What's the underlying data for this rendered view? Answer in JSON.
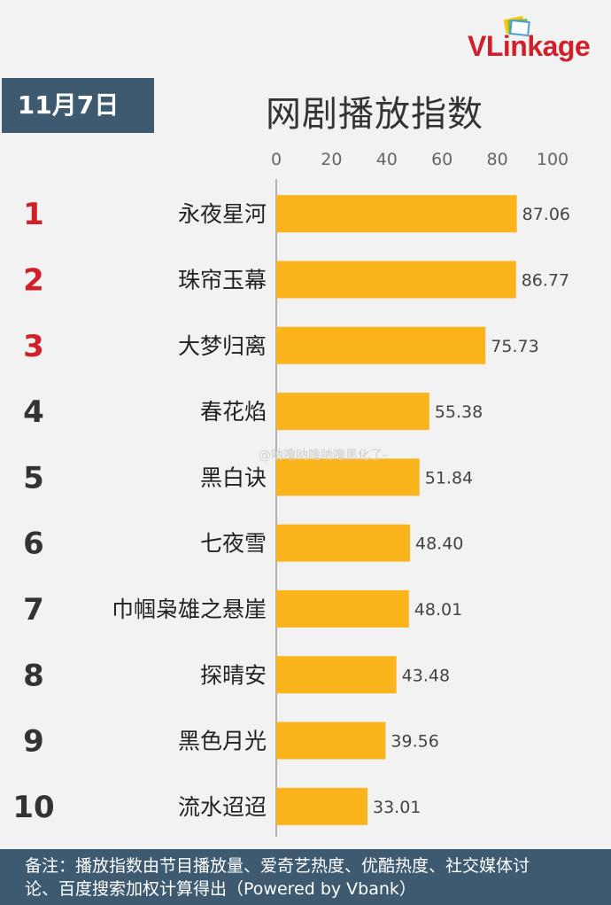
{
  "brand": {
    "logo_text": "VLinkage",
    "logo_color": "#d0202a"
  },
  "header": {
    "date": "11月7日",
    "title": "网剧播放指数"
  },
  "chart_data": {
    "type": "bar",
    "orientation": "horizontal",
    "title": "网剧播放指数",
    "ranks": [
      "1",
      "2",
      "3",
      "4",
      "5",
      "6",
      "7",
      "8",
      "9",
      "10"
    ],
    "categories": [
      "永夜星河",
      "珠帘玉幕",
      "大梦归离",
      "春花焰",
      "黑白诀",
      "七夜雪",
      "巾帼枭雄之悬崖",
      "探晴安",
      "黑色月光",
      "流水迢迢"
    ],
    "values": [
      87.06,
      86.77,
      75.73,
      55.38,
      51.84,
      48.4,
      48.01,
      43.48,
      39.56,
      33.01
    ],
    "value_labels": [
      "87.06",
      "86.77",
      "75.73",
      "55.38",
      "51.84",
      "48.40",
      "48.01",
      "43.48",
      "39.56",
      "33.01"
    ],
    "xlim": [
      0,
      100
    ],
    "xticks": [
      "0",
      "20",
      "40",
      "60",
      "80",
      "100"
    ],
    "grid": false,
    "bar_color": "#fbb41c",
    "top_rank_color": "#d0202a",
    "rank_color": "#333333"
  },
  "watermark": "@呐噜呐噜呐噜黑化了-",
  "footer": {
    "line1": "备注：播放指数由节目播放量、爱奇艺热度、优酷热度、社交媒体讨",
    "line2": "论、百度搜索加权计算得出（Powered by Vbank）"
  }
}
